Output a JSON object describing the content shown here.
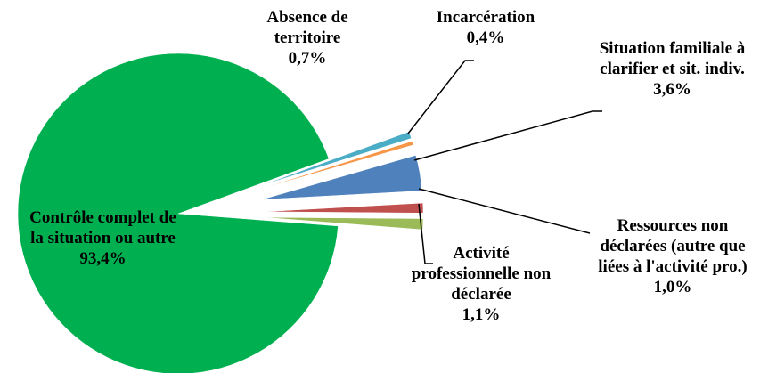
{
  "chart_data": {
    "type": "pie",
    "categories": [
      "Absence de territoire",
      "Incarcération",
      "Situation familiale à clarifier et sit. indiv.",
      "Ressources non déclarées (autre que liées à l'activité pro.)",
      "Activité professionnelle non déclarée",
      "Contrôle complet de la situation ou autre"
    ],
    "values": [
      0.7,
      0.4,
      3.6,
      1.0,
      1.1,
      93.4
    ],
    "value_labels": [
      "0,7%",
      "0,4%",
      "3,6%",
      "1,0%",
      "1,1%",
      "93,4%"
    ],
    "colors": [
      "#4bacc6",
      "#f79646",
      "#4f81bd",
      "#c0504d",
      "#9bbb59",
      "#00b050"
    ]
  }
}
